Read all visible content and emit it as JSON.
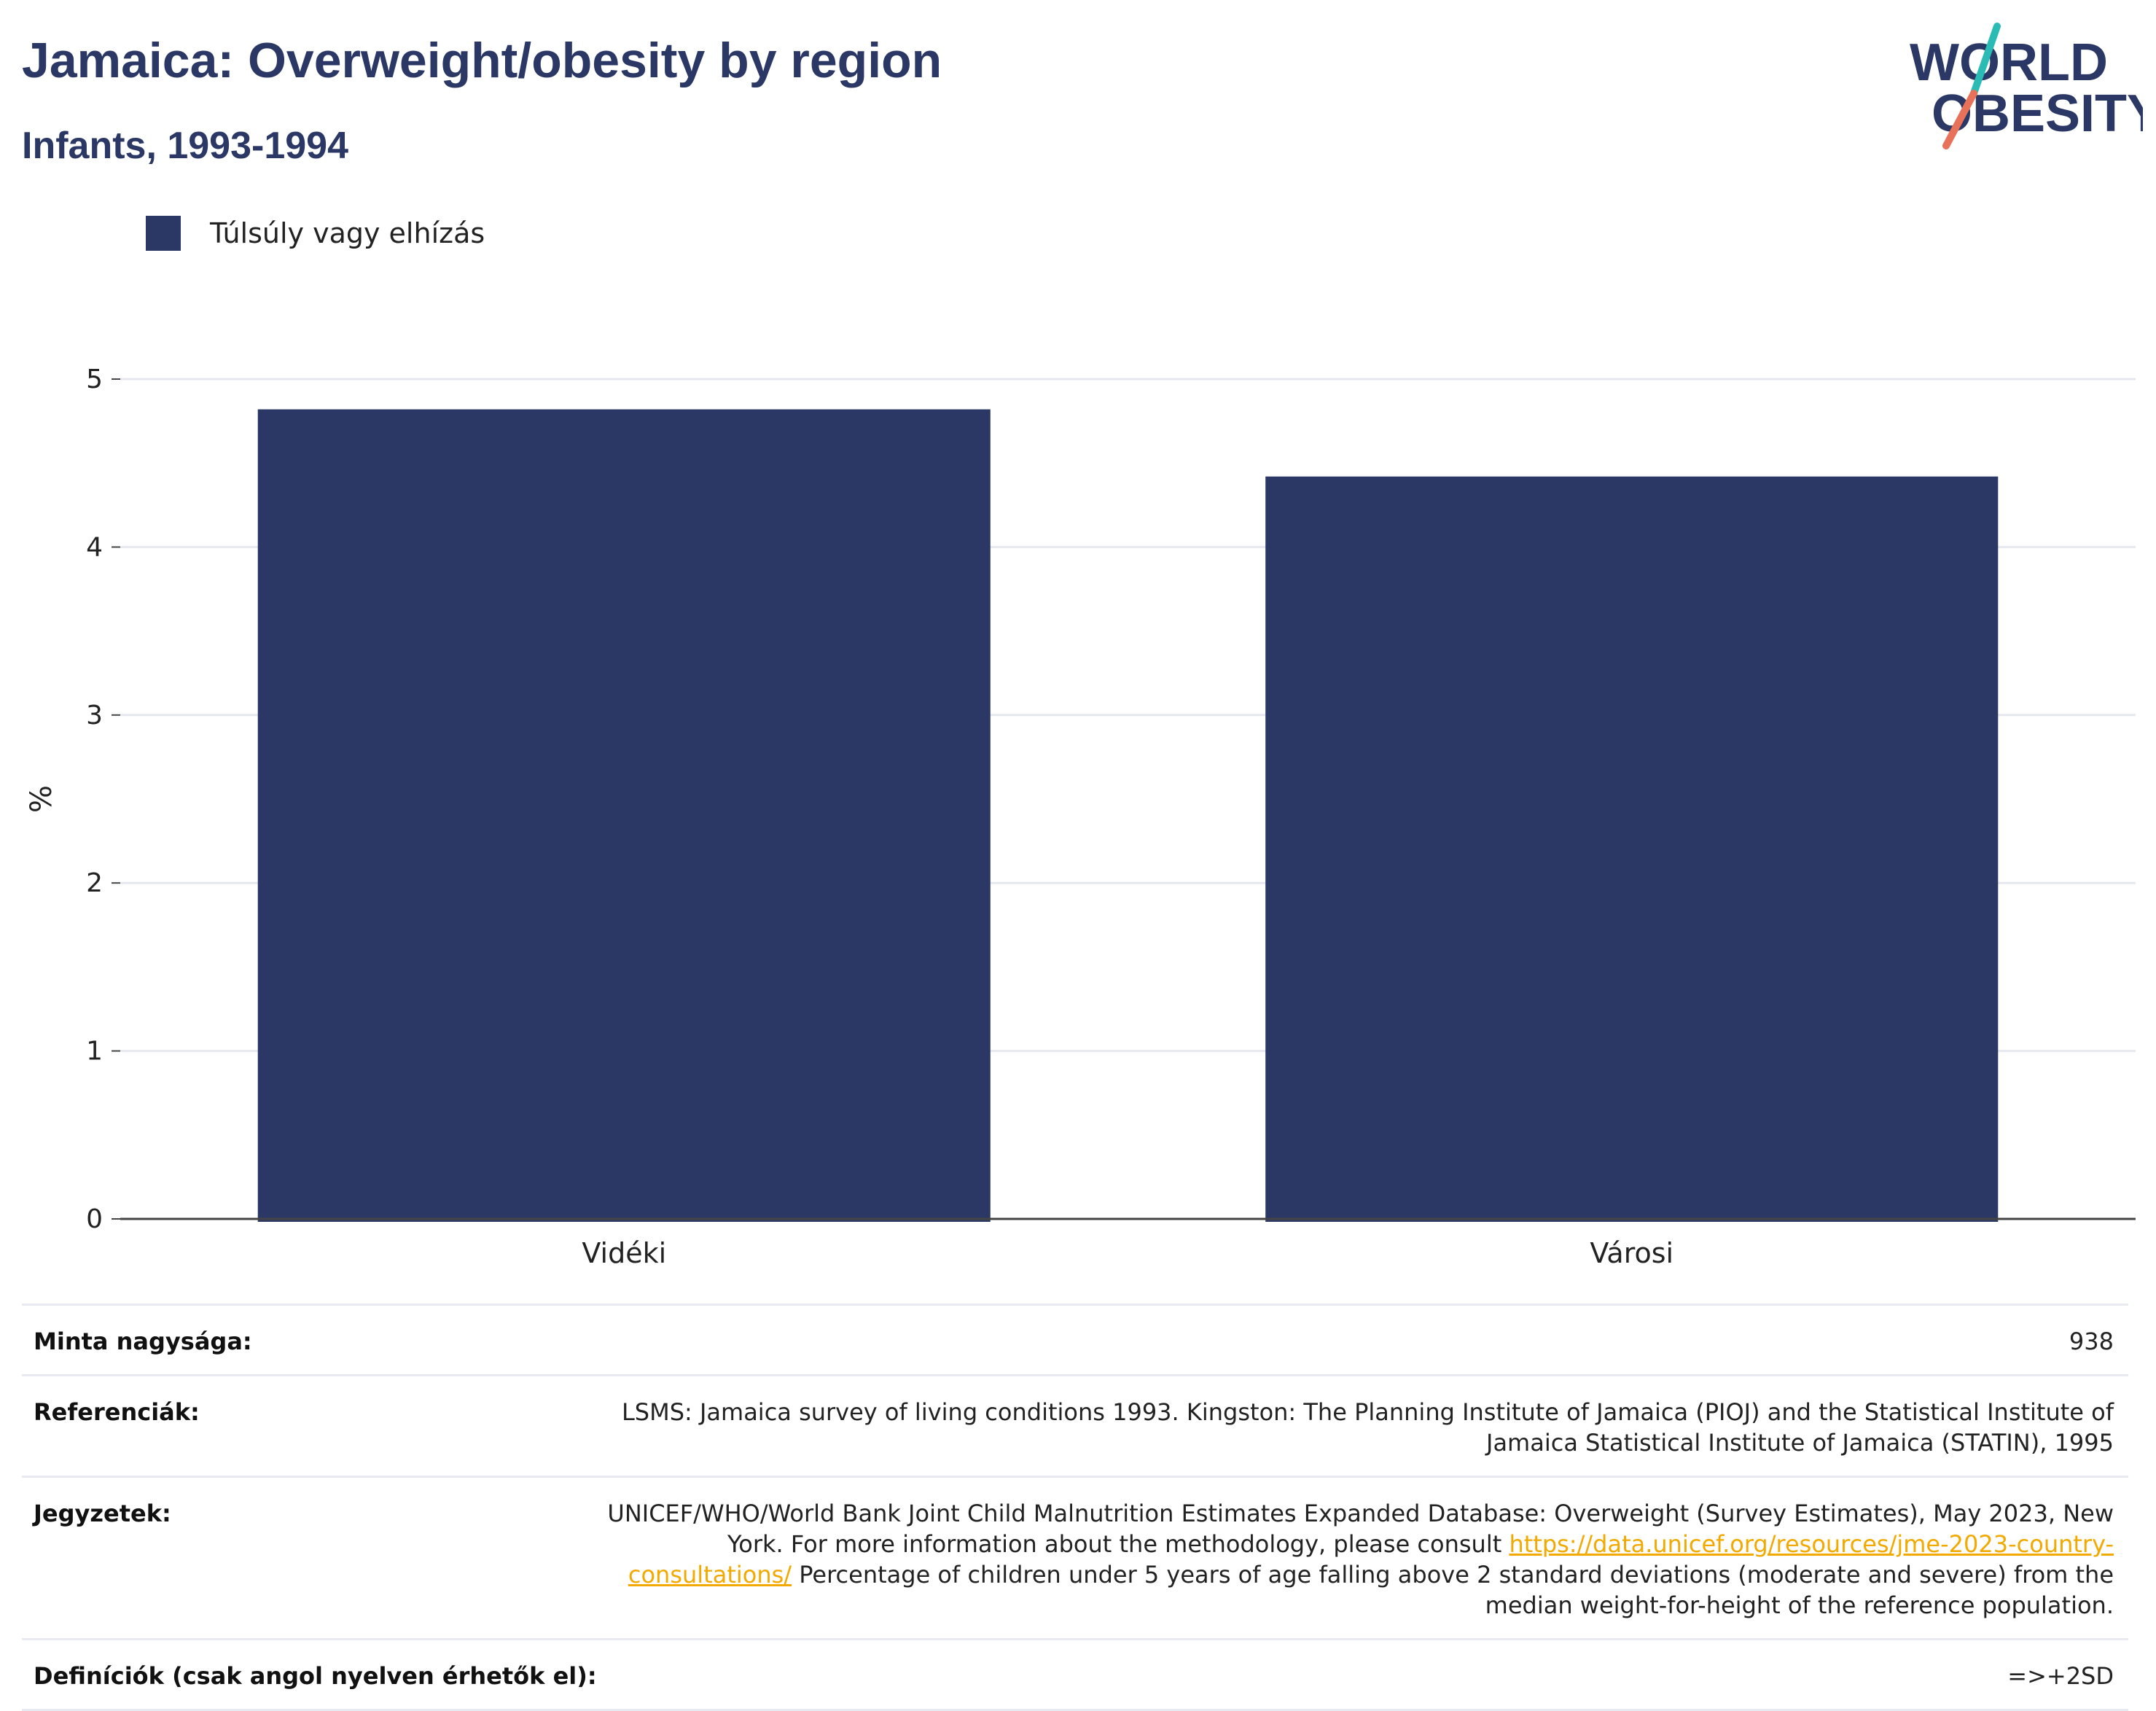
{
  "header": {
    "title": "Jamaica: Overweight/obesity by region",
    "subtitle": "Infants, 1993-1994"
  },
  "logo": {
    "line1": "WORLD",
    "line2": "OBESITY"
  },
  "colors": {
    "bar": "#2b3765",
    "title": "#2b3765",
    "link": "#f2a900",
    "logo_teal": "#2bbbb5",
    "logo_coral": "#e8715a"
  },
  "chart_data": {
    "type": "bar",
    "categories": [
      "Vidéki",
      "Városi"
    ],
    "series": [
      {
        "name": "Túlsúly vagy elhízás",
        "values": [
          4.82,
          4.42
        ]
      }
    ],
    "ylabel": "%",
    "xlabel": "",
    "ylim": [
      0,
      5
    ],
    "yticks": [
      0,
      1,
      2,
      3,
      4,
      5
    ],
    "grid": true,
    "legend": "top-left"
  },
  "meta": {
    "sample_label": "Minta nagysága:",
    "sample_value": "938",
    "references_label": "Referenciák:",
    "references_value": "LSMS: Jamaica survey of living conditions 1993. Kingston: The Planning Institute of Jamaica (PIOJ) and the Statistical Institute of Jamaica Statistical Institute of Jamaica (STATIN), 1995",
    "notes_label": "Jegyzetek:",
    "notes_text1": "UNICEF/WHO/World Bank Joint Child Malnutrition Estimates Expanded Database: Overweight (Survey Estimates), May 2023, New York. For more information about the methodology, please consult ",
    "notes_link": "https://data.unicef.org/resources/jme-2023-country-consultations/",
    "notes_text2": " Percentage of children under 5 years of age falling above 2 standard deviations (moderate and severe) from the median weight-for-height of the reference population.",
    "definitions_label": "Definíciók (csak angol nyelven érhetők el):",
    "definitions_value": "=>+2SD"
  }
}
